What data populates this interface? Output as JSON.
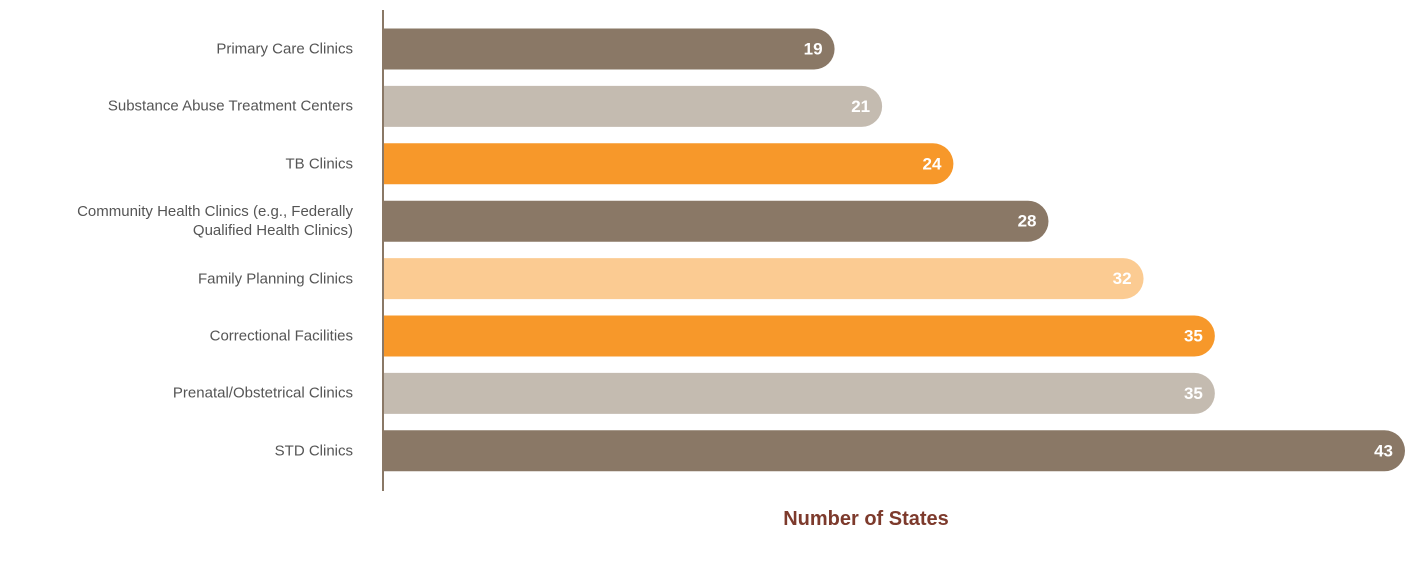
{
  "chart_data": {
    "type": "bar",
    "orientation": "horizontal",
    "xlabel": "Number of States",
    "categories": [
      "Primary Care Clinics",
      "Substance Abuse Treatment Centers",
      "TB Clinics",
      "Community Health Clinics (e.g., Federally\nQualified Health Clinics)",
      "Family Planning Clinics",
      "Correctional Facilities",
      "Prenatal/Obstetrical Clinics",
      "STD Clinics"
    ],
    "values": [
      19,
      21,
      24,
      28,
      32,
      35,
      35,
      43
    ],
    "colors": [
      "#8a7866",
      "#c4bbb0",
      "#f7982a",
      "#8a7866",
      "#fbcb92",
      "#f7982a",
      "#c4bbb0",
      "#8a7866"
    ]
  }
}
